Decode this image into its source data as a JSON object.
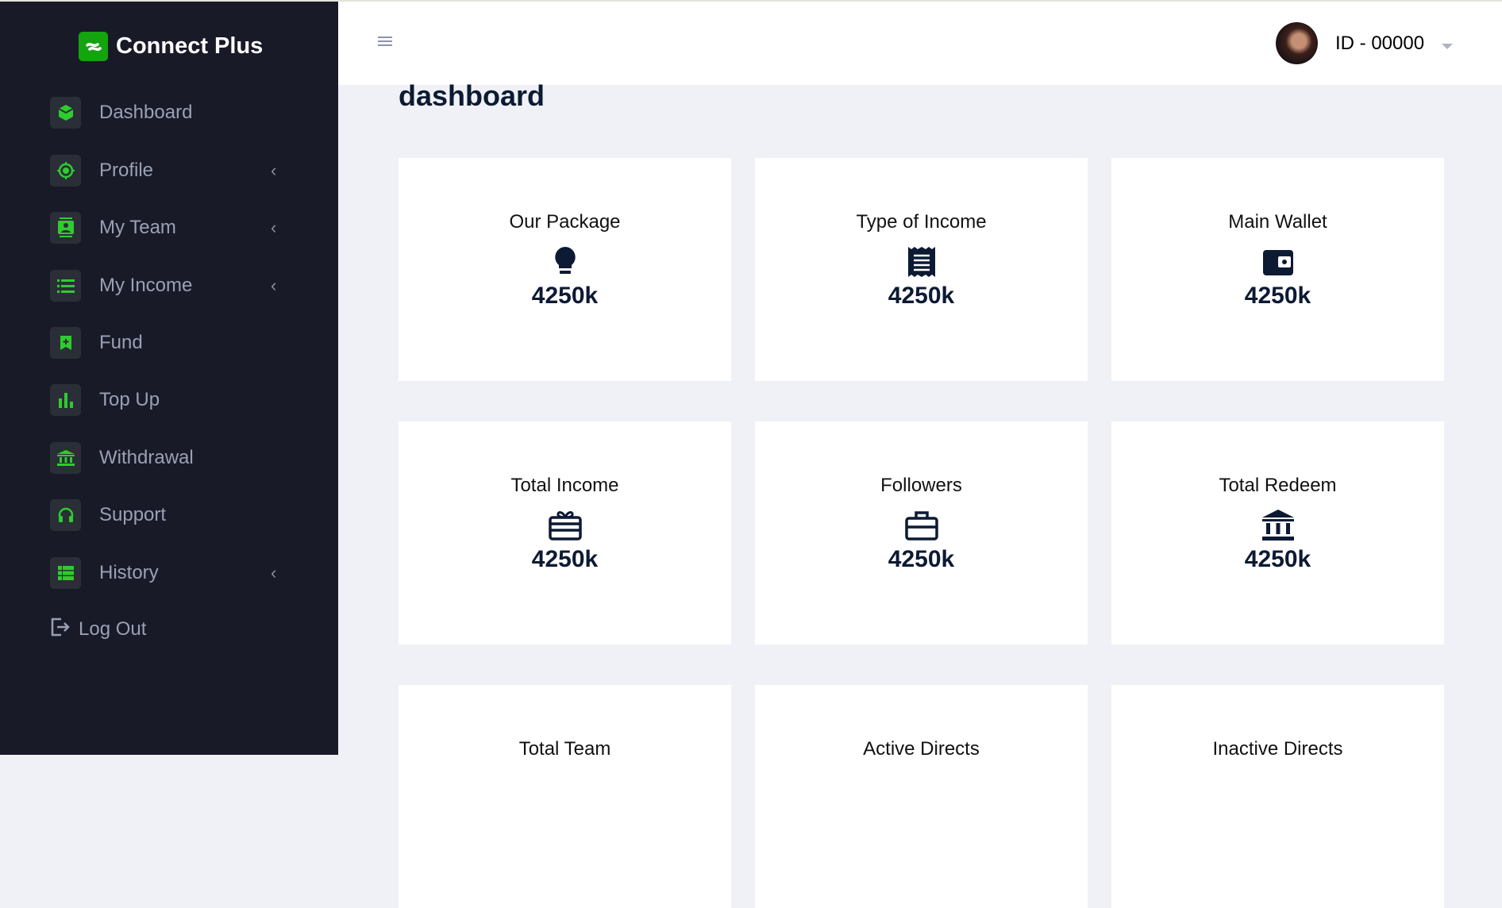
{
  "brand": {
    "name": "Connect Plus",
    "accent": "#13a40f"
  },
  "sidebar": {
    "items": [
      {
        "label": "Dashboard",
        "icon": "cube-icon",
        "has_submenu": false
      },
      {
        "label": "Profile",
        "icon": "crosshair-icon",
        "has_submenu": true
      },
      {
        "label": "My Team",
        "icon": "contact-card-icon",
        "has_submenu": true
      },
      {
        "label": "My Income",
        "icon": "list-icon",
        "has_submenu": true
      },
      {
        "label": "Fund",
        "icon": "bookmark-icon",
        "has_submenu": false
      },
      {
        "label": "Top Up",
        "icon": "bar-chart-icon",
        "has_submenu": false
      },
      {
        "label": "Withdrawal",
        "icon": "bank-icon",
        "has_submenu": false
      },
      {
        "label": "Support",
        "icon": "headset-icon",
        "has_submenu": false
      },
      {
        "label": "History",
        "icon": "table-icon",
        "has_submenu": true
      }
    ],
    "logout": "Log Out"
  },
  "header": {
    "user_id": "ID - 00000"
  },
  "page": {
    "title": "dashboard"
  },
  "cards": [
    {
      "title": "Our Package",
      "value": "4250k",
      "icon": "lightbulb-icon"
    },
    {
      "title": "Type of Income",
      "value": "4250k",
      "icon": "receipt-icon"
    },
    {
      "title": "Main Wallet",
      "value": "4250k",
      "icon": "wallet-icon"
    },
    {
      "title": "Total Income",
      "value": "4250k",
      "icon": "gift-card-icon"
    },
    {
      "title": "Followers",
      "value": "4250k",
      "icon": "briefcase-icon"
    },
    {
      "title": "Total Redeem",
      "value": "4250k",
      "icon": "bank-icon"
    },
    {
      "title": "Total Team",
      "value": "",
      "icon": ""
    },
    {
      "title": "Active Directs",
      "value": "",
      "icon": ""
    },
    {
      "title": "Inactive Directs",
      "value": "",
      "icon": ""
    }
  ]
}
